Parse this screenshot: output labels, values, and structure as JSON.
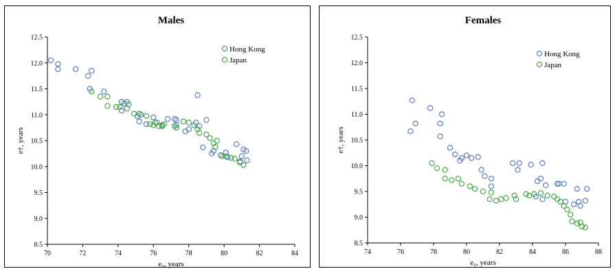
{
  "chart_data": [
    {
      "type": "scatter",
      "title": "Males",
      "xlabel": "e₀, years",
      "ylabel": "e†, years",
      "xlim": [
        70,
        84
      ],
      "ylim": [
        8.5,
        12.5
      ],
      "xticks": [
        "70",
        "72",
        "74",
        "76",
        "78",
        "80",
        "82",
        "84"
      ],
      "yticks": [
        "8.5",
        "9.0",
        "9.5",
        "10.0",
        "10.5",
        "11.0",
        "11.5",
        "12.0",
        "12.5"
      ],
      "legend_position": "top-right",
      "series": [
        {
          "name": "Hong Kong",
          "color": "#4a72c4",
          "points": [
            [
              70.2,
              12.05
            ],
            [
              70.6,
              11.98
            ],
            [
              70.6,
              11.88
            ],
            [
              71.6,
              11.88
            ],
            [
              72.3,
              11.75
            ],
            [
              72.5,
              11.85
            ],
            [
              72.4,
              11.5
            ],
            [
              73.2,
              11.45
            ],
            [
              73.9,
              11.15
            ],
            [
              74.2,
              11.25
            ],
            [
              74.35,
              11.22
            ],
            [
              74.6,
              11.2
            ],
            [
              74.2,
              11.08
            ],
            [
              75.3,
              11.0
            ],
            [
              75.1,
              10.97
            ],
            [
              75.2,
              10.87
            ],
            [
              75.6,
              10.82
            ],
            [
              76.0,
              10.95
            ],
            [
              76.2,
              10.85
            ],
            [
              76.5,
              10.8
            ],
            [
              76.8,
              10.92
            ],
            [
              77.2,
              10.92
            ],
            [
              77.3,
              10.9
            ],
            [
              77.3,
              10.8
            ],
            [
              77.8,
              10.68
            ],
            [
              78.0,
              10.72
            ],
            [
              78.4,
              10.85
            ],
            [
              78.6,
              10.78
            ],
            [
              78.5,
              11.38
            ],
            [
              79.0,
              10.9
            ],
            [
              78.8,
              10.37
            ],
            [
              79.3,
              10.25
            ],
            [
              79.4,
              10.3
            ],
            [
              79.8,
              10.22
            ],
            [
              80.1,
              10.27
            ],
            [
              80.2,
              10.18
            ],
            [
              80.7,
              10.43
            ],
            [
              80.9,
              10.1
            ],
            [
              81.0,
              10.2
            ],
            [
              81.1,
              10.33
            ],
            [
              81.25,
              10.3
            ],
            [
              81.3,
              10.12
            ]
          ]
        },
        {
          "name": "Japan",
          "color": "#2fa62f",
          "points": [
            [
              72.5,
              11.45
            ],
            [
              73.0,
              11.35
            ],
            [
              73.4,
              11.35
            ],
            [
              73.4,
              11.17
            ],
            [
              73.9,
              11.15
            ],
            [
              74.1,
              11.15
            ],
            [
              74.5,
              11.12
            ],
            [
              74.5,
              11.25
            ],
            [
              74.9,
              11.02
            ],
            [
              75.2,
              11.02
            ],
            [
              75.6,
              10.98
            ],
            [
              75.8,
              10.82
            ],
            [
              76.0,
              10.8
            ],
            [
              76.1,
              10.85
            ],
            [
              76.3,
              10.78
            ],
            [
              76.5,
              10.78
            ],
            [
              76.6,
              10.82
            ],
            [
              77.2,
              10.78
            ],
            [
              77.3,
              10.75
            ],
            [
              77.7,
              10.87
            ],
            [
              78.0,
              10.85
            ],
            [
              78.3,
              10.8
            ],
            [
              78.5,
              10.72
            ],
            [
              78.6,
              10.65
            ],
            [
              79.0,
              10.62
            ],
            [
              79.2,
              10.55
            ],
            [
              79.4,
              10.45
            ],
            [
              79.5,
              10.38
            ],
            [
              79.6,
              10.5
            ],
            [
              79.9,
              10.2
            ],
            [
              80.1,
              10.2
            ],
            [
              80.4,
              10.17
            ],
            [
              80.6,
              10.15
            ],
            [
              80.9,
              10.08
            ],
            [
              81.1,
              10.03
            ]
          ]
        }
      ]
    },
    {
      "type": "scatter",
      "title": "Females",
      "xlabel": "e₀, years",
      "ylabel": "e†, years",
      "xlim": [
        74,
        88
      ],
      "ylim": [
        8.5,
        12.5
      ],
      "xticks": [
        "74",
        "76",
        "78",
        "80",
        "82",
        "84",
        "86",
        "88"
      ],
      "yticks": [
        "8.5",
        "9.0",
        "9.5",
        "10.0",
        "10.5",
        "11.0",
        "11.5",
        "12.0",
        "12.5"
      ],
      "legend_position": "top-right",
      "series": [
        {
          "name": "Hong Kong",
          "color": "#4a72c4",
          "points": [
            [
              76.7,
              11.27
            ],
            [
              76.9,
              10.82
            ],
            [
              76.6,
              10.67
            ],
            [
              77.8,
              11.12
            ],
            [
              78.5,
              11.0
            ],
            [
              78.4,
              10.82
            ],
            [
              78.4,
              10.57
            ],
            [
              79.0,
              10.35
            ],
            [
              79.3,
              10.22
            ],
            [
              79.7,
              10.15
            ],
            [
              79.6,
              10.1
            ],
            [
              80.0,
              10.2
            ],
            [
              80.3,
              10.15
            ],
            [
              80.7,
              10.17
            ],
            [
              80.9,
              9.92
            ],
            [
              81.1,
              9.8
            ],
            [
              81.5,
              9.75
            ],
            [
              81.5,
              9.6
            ],
            [
              82.8,
              10.05
            ],
            [
              83.2,
              10.05
            ],
            [
              83.1,
              9.92
            ],
            [
              83.9,
              10.02
            ],
            [
              84.6,
              10.05
            ],
            [
              84.3,
              9.7
            ],
            [
              84.5,
              9.75
            ],
            [
              84.8,
              9.62
            ],
            [
              84.6,
              9.35
            ],
            [
              85.5,
              9.65
            ],
            [
              85.6,
              9.65
            ],
            [
              85.9,
              9.65
            ],
            [
              86.0,
              9.3
            ],
            [
              86.5,
              9.25
            ],
            [
              86.7,
              9.55
            ],
            [
              86.8,
              9.3
            ],
            [
              86.9,
              9.22
            ],
            [
              87.3,
              9.55
            ],
            [
              87.2,
              9.32
            ],
            [
              84.2,
              9.4
            ]
          ]
        },
        {
          "name": "Japan",
          "color": "#2fa62f",
          "points": [
            [
              77.9,
              10.05
            ],
            [
              78.2,
              9.95
            ],
            [
              78.7,
              9.92
            ],
            [
              78.7,
              9.75
            ],
            [
              79.1,
              9.72
            ],
            [
              79.5,
              9.75
            ],
            [
              79.7,
              9.65
            ],
            [
              80.2,
              9.6
            ],
            [
              80.5,
              9.55
            ],
            [
              81.0,
              9.5
            ],
            [
              81.4,
              9.35
            ],
            [
              81.5,
              9.48
            ],
            [
              81.8,
              9.32
            ],
            [
              82.1,
              9.35
            ],
            [
              82.4,
              9.37
            ],
            [
              82.9,
              9.42
            ],
            [
              83.0,
              9.35
            ],
            [
              83.6,
              9.45
            ],
            [
              83.8,
              9.42
            ],
            [
              84.1,
              9.45
            ],
            [
              84.5,
              9.47
            ],
            [
              84.9,
              9.42
            ],
            [
              85.3,
              9.4
            ],
            [
              85.5,
              9.35
            ],
            [
              85.7,
              9.3
            ],
            [
              85.9,
              9.22
            ],
            [
              86.1,
              9.15
            ],
            [
              86.3,
              9.05
            ],
            [
              86.4,
              8.92
            ],
            [
              86.7,
              8.88
            ],
            [
              86.9,
              8.9
            ],
            [
              87.0,
              8.82
            ],
            [
              87.2,
              8.8
            ]
          ]
        }
      ]
    }
  ]
}
